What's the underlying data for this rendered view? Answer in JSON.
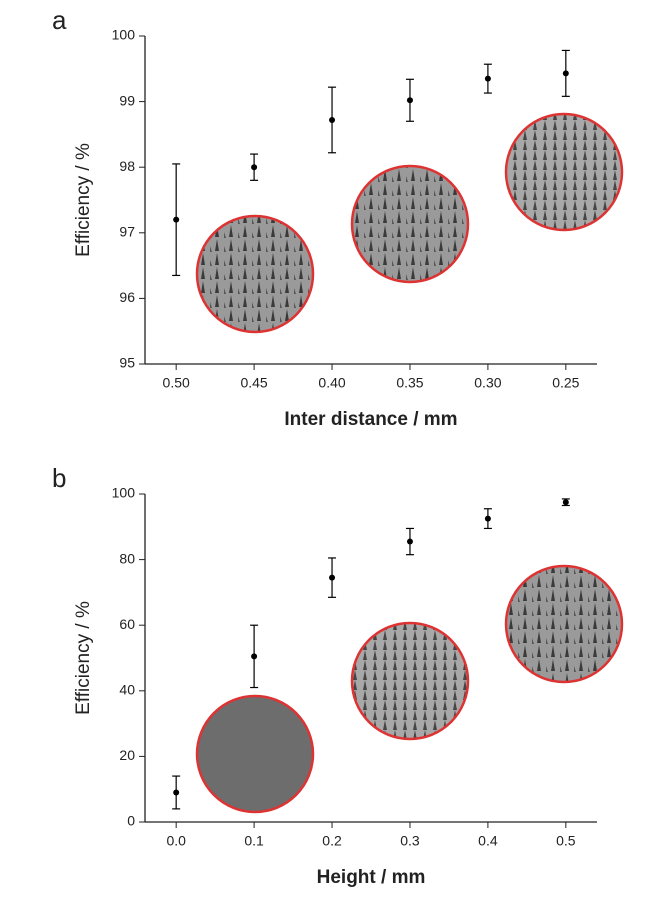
{
  "chart_data": [
    {
      "type": "scatter",
      "panel": "a",
      "x_label": "Inter distance / mm",
      "y_label": "Efficiency / %",
      "series": [
        {
          "color": "#000000",
          "x": [
            0.5,
            0.45,
            0.4,
            0.35,
            0.3,
            0.25
          ],
          "values": [
            97.2,
            98.0,
            98.72,
            99.02,
            99.35,
            99.43
          ],
          "errors": [
            0.85,
            0.2,
            0.5,
            0.32,
            0.22,
            0.35
          ]
        }
      ],
      "xlim": [
        0.52,
        0.23
      ],
      "xticks": [
        {
          "value": 0.5,
          "label": "0.50"
        },
        {
          "value": 0.45,
          "label": "0.45"
        },
        {
          "value": 0.4,
          "label": "0.40"
        },
        {
          "value": 0.35,
          "label": "0.35"
        },
        {
          "value": 0.3,
          "label": "0.30"
        },
        {
          "value": 0.25,
          "label": "0.25"
        }
      ],
      "ylim": [
        95,
        100
      ],
      "yticks": [
        95,
        96,
        97,
        98,
        99,
        100
      ]
    },
    {
      "type": "scatter",
      "panel": "b",
      "x_label": "Height / mm",
      "y_label": "Efficiency / %",
      "series": [
        {
          "color": "#000000",
          "x": [
            0,
            0.1,
            0.2,
            0.3,
            0.4,
            0.5
          ],
          "values": [
            9,
            50.5,
            74.5,
            85.5,
            92.5,
            97.5
          ],
          "errors": [
            5,
            9.5,
            6,
            4,
            3,
            1
          ]
        }
      ],
      "xlim": [
        -0.04,
        0.54
      ],
      "xticks": [
        {
          "value": 0,
          "label": "0.0"
        },
        {
          "value": 0.1,
          "label": "0.1"
        },
        {
          "value": 0.2,
          "label": "0.2"
        },
        {
          "value": 0.3,
          "label": "0.3"
        },
        {
          "value": 0.4,
          "label": "0.4"
        },
        {
          "value": 0.5,
          "label": "0.5"
        }
      ],
      "ylim": [
        0,
        100
      ],
      "yticks": [
        0,
        20,
        40,
        60,
        80,
        100
      ]
    }
  ]
}
